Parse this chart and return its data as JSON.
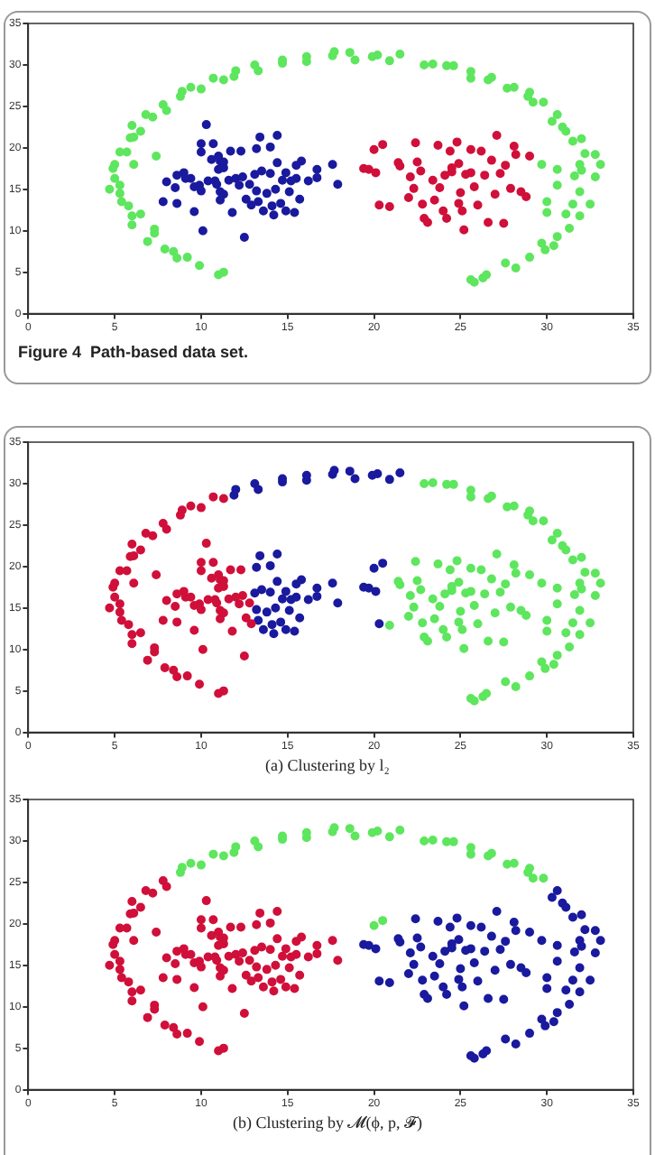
{
  "chart_data": [
    {
      "type": "scatter",
      "annotations": [
        "Figure 4  Path-based data set."
      ],
      "xlim": [
        0,
        35
      ],
      "ylim": [
        0,
        35
      ],
      "xticks": [
        0,
        5,
        10,
        15,
        20,
        25,
        30,
        35
      ],
      "yticks": [
        0,
        5,
        10,
        15,
        20,
        25,
        30,
        35
      ],
      "grid": false,
      "marker": "circle",
      "series": [
        {
          "color": "#5ee65e",
          "x": [
            11.3,
            11.0,
            9.9,
            9.2,
            8.6,
            8.4,
            7.9,
            7.3,
            7.3,
            6.9,
            6.5,
            6.0,
            6.0,
            5.8,
            5.4,
            5.3,
            4.7,
            5.3,
            5.0,
            4.9,
            5.0,
            5.3,
            5.7,
            6.1,
            7.4,
            5.9,
            6.1,
            6.0,
            6.5,
            6.8,
            7.2,
            7.8,
            8.0,
            8.8,
            8.9,
            9.4,
            10.0,
            10.7,
            11.3,
            11.9,
            12.0,
            13.1,
            13.3,
            14.7,
            14.7,
            16.1,
            16.1,
            17.6,
            17.7,
            18.6,
            18.9,
            19.9,
            20.2,
            20.9,
            21.5,
            22.9,
            23.4,
            24.2,
            24.6,
            25.6,
            25.6,
            26.8,
            26.6,
            27.7,
            28.1,
            29.0,
            28.9,
            29.2,
            29.8,
            30.3,
            30.6,
            30.9,
            31.1,
            31.5,
            32.0,
            32.2,
            32.8,
            31.9,
            33.1,
            32.0,
            32.8,
            31.6,
            31.9,
            32.5,
            31.5,
            31.1,
            31.3,
            31.9,
            30.6,
            30.4,
            29.9,
            29.7,
            29.0,
            28.2,
            27.6,
            26.5,
            26.3,
            25.8,
            25.6,
            30.0,
            30.0,
            29.7,
            30.6,
            30.6
          ],
          "values": [
            5.0,
            4.7,
            5.8,
            6.8,
            6.7,
            7.5,
            7.8,
            9.7,
            10.2,
            8.7,
            12,
            10.7,
            11.8,
            13,
            13.5,
            14.5,
            15,
            15.5,
            16.3,
            17.5,
            18,
            19.5,
            19.5,
            18,
            19,
            21.2,
            21.3,
            22.7,
            22,
            24,
            23.7,
            25.2,
            24.5,
            26.2,
            26.8,
            27.3,
            27.1,
            28.4,
            28.2,
            28.6,
            29.3,
            30,
            29.3,
            30.2,
            30.6,
            30.4,
            31,
            31.1,
            31.6,
            31.5,
            30.6,
            31,
            31.2,
            30.5,
            31.3,
            30,
            30.1,
            29.9,
            29.9,
            29.2,
            28.4,
            28.5,
            28.2,
            27.2,
            27.3,
            26.7,
            26.2,
            25.5,
            25.5,
            23.2,
            24,
            22.5,
            22,
            20.8,
            21.1,
            19.3,
            19.2,
            18,
            18,
            17.3,
            16.5,
            16.6,
            14.7,
            13.2,
            13.2,
            12,
            10.3,
            11.8,
            9.3,
            8.2,
            7.7,
            8.5,
            6.8,
            5.5,
            6.1,
            4.7,
            4.3,
            3.8,
            4.1,
            13.5,
            12.2,
            18,
            17.4,
            15.5
          ]
        },
        {
          "color": "#1a1a9e",
          "x": [
            8.0,
            7.8,
            8.5,
            8.6,
            8.6,
            9.0,
            9.1,
            9.4,
            9.6,
            9.6,
            9.9,
            10.0,
            10.0,
            10.0,
            10.1,
            10.3,
            10.4,
            10.6,
            10.7,
            10.8,
            10.9,
            11.0,
            11.0,
            11.1,
            11.1,
            11.1,
            11.3,
            11.3,
            11.3,
            11.6,
            11.7,
            11.8,
            12.0,
            12.2,
            12.3,
            12.4,
            12.5,
            12.6,
            12.8,
            12.9,
            13.1,
            13.2,
            13.2,
            13.3,
            13.4,
            13.5,
            13.6,
            13.8,
            14.0,
            14.0,
            14.1,
            14.2,
            14.3,
            14.4,
            14.4,
            14.6,
            14.7,
            14.9,
            14.9,
            15.1,
            15.2,
            15.4,
            15.5,
            15.5,
            15.7,
            15.8,
            16.2,
            16.7,
            16.7,
            17.6,
            17.9
          ],
          "values": [
            15.9,
            13.5,
            15.2,
            16.7,
            13.3,
            17,
            16.3,
            16.3,
            15.3,
            12.3,
            15.5,
            14.8,
            20.5,
            19.5,
            10,
            22.8,
            16,
            18.6,
            20.5,
            16,
            15.6,
            17.4,
            19.0,
            18.4,
            14.7,
            13.7,
            14.4,
            17.6,
            18.3,
            16.1,
            19.6,
            12.2,
            16.3,
            15.5,
            19.6,
            16.5,
            9.2,
            13.8,
            15.6,
            13.1,
            16.8,
            14.8,
            19.9,
            13.5,
            21.3,
            17.2,
            12.4,
            14.5,
            16.9,
            20.1,
            13.0,
            11.9,
            15.0,
            18.2,
            21.5,
            13.3,
            16.1,
            17.0,
            12.4,
            14.7,
            16.0,
            12.2,
            16.3,
            17.9,
            13.8,
            18.4,
            16.0,
            17.4,
            16.4,
            18.0,
            15.6
          ]
        },
        {
          "color": "#d0103a",
          "x": [
            19.4,
            19.7,
            20.1,
            20.3,
            20.0,
            20.5,
            20.9,
            21.4,
            21.5,
            22.0,
            22.1,
            22.3,
            22.4,
            22.5,
            22.7,
            22.8,
            22.9,
            23.1,
            23.4,
            23.5,
            23.7,
            23.8,
            24.0,
            24.1,
            24.2,
            24.4,
            24.5,
            24.5,
            24.8,
            24.9,
            24.9,
            25.0,
            25.1,
            25.2,
            25.3,
            25.6,
            25.6,
            25.8,
            26.0,
            26.2,
            26.4,
            26.6,
            26.8,
            27.0,
            27.1,
            27.3,
            27.5,
            27.6,
            27.9,
            28.1,
            28.2,
            28.5,
            28.8,
            29.0
          ],
          "values": [
            17.5,
            17.4,
            17.0,
            13.1,
            19.8,
            20.4,
            12.9,
            18.2,
            17.8,
            14,
            16.5,
            15.1,
            20.6,
            18.3,
            17.2,
            13.2,
            11.5,
            11.0,
            16.1,
            13.7,
            20.3,
            15.2,
            12.4,
            16.7,
            11.5,
            19.6,
            17.1,
            17.6,
            20.7,
            18.1,
            13.3,
            14.6,
            12.4,
            10.1,
            16.8,
            19.8,
            17.0,
            15.3,
            13.1,
            19.6,
            16.7,
            11.0,
            18.5,
            14.4,
            21.5,
            16.9,
            10.9,
            17.9,
            15.1,
            20.2,
            19.2,
            14.7,
            14.1,
            19.0
          ]
        }
      ]
    },
    {
      "type": "scatter",
      "annotations": [
        "(a) Clustering by l₂"
      ],
      "xlim": [
        0,
        35
      ],
      "ylim": [
        0,
        35
      ],
      "xticks": [
        0,
        5,
        10,
        15,
        20,
        25,
        30,
        35
      ],
      "yticks": [
        0,
        5,
        10,
        15,
        20,
        25,
        30,
        35
      ],
      "grid": false,
      "marker": "circle",
      "series": [
        {
          "color": "#d0103a",
          "x": [
            11.3,
            11.0,
            9.9,
            9.2,
            8.6,
            8.4,
            7.9,
            7.3,
            7.3,
            6.9,
            6.5,
            6.0,
            6.0,
            5.8,
            5.4,
            5.3,
            4.7,
            5.3,
            5.0,
            4.9,
            5.0,
            5.3,
            5.7,
            6.1,
            7.4,
            5.9,
            6.1,
            6.0,
            6.5,
            6.8,
            7.2,
            7.8,
            8.0,
            8.8,
            8.9,
            9.4,
            10.0,
            10.7,
            11.3,
            8.0,
            7.8,
            8.5,
            8.6,
            8.6,
            9.0,
            9.1,
            9.4,
            9.6,
            9.6,
            9.9,
            10.0,
            10.0,
            10.0,
            10.1,
            10.3,
            10.4,
            10.6,
            10.7,
            10.8,
            10.9,
            11.0,
            11.0,
            11.1,
            11.1,
            11.1,
            11.3,
            11.3,
            11.3,
            11.6,
            11.7,
            11.8,
            12.0,
            12.2,
            12.3,
            12.4,
            12.5,
            12.6,
            12.8,
            12.9
          ],
          "values": [
            5.0,
            4.7,
            5.8,
            6.8,
            6.7,
            7.5,
            7.8,
            9.7,
            10.2,
            8.7,
            12,
            10.7,
            11.8,
            13,
            13.5,
            14.5,
            15,
            15.5,
            16.3,
            17.5,
            18,
            19.5,
            19.5,
            18,
            19,
            21.2,
            21.3,
            22.7,
            22,
            24,
            23.7,
            25.2,
            24.5,
            26.2,
            26.8,
            27.3,
            27.1,
            28.4,
            28.2,
            15.9,
            13.5,
            15.2,
            16.7,
            13.3,
            17,
            16.3,
            16.3,
            15.3,
            12.3,
            15.5,
            14.8,
            20.5,
            19.5,
            10,
            22.8,
            16,
            18.6,
            20.5,
            16,
            15.6,
            17.4,
            19.0,
            18.4,
            14.7,
            13.7,
            14.4,
            17.6,
            18.3,
            16.1,
            19.6,
            12.2,
            16.3,
            15.5,
            19.6,
            16.5,
            9.2,
            13.8,
            15.6,
            13.1
          ]
        },
        {
          "color": "#1a1a9e",
          "x": [
            11.9,
            12.0,
            13.1,
            13.3,
            14.7,
            14.7,
            16.1,
            16.1,
            17.6,
            17.7,
            18.6,
            18.9,
            19.9,
            20.2,
            20.9,
            21.5,
            13.1,
            13.2,
            13.2,
            13.3,
            13.4,
            13.5,
            13.6,
            13.8,
            14.0,
            14.0,
            14.1,
            14.2,
            14.3,
            14.4,
            14.4,
            14.6,
            14.7,
            14.9,
            14.9,
            15.1,
            15.2,
            15.4,
            15.5,
            15.5,
            15.7,
            15.8,
            16.2,
            16.7,
            16.7,
            17.6,
            17.9,
            19.4,
            19.7,
            20.1,
            20.3,
            20.0,
            20.5
          ],
          "values": [
            28.6,
            29.3,
            30,
            29.3,
            30.2,
            30.6,
            30.4,
            31,
            31.1,
            31.6,
            31.5,
            30.6,
            31,
            31.2,
            30.5,
            31.3,
            16.8,
            14.8,
            19.9,
            13.5,
            21.3,
            17.2,
            12.4,
            14.5,
            16.9,
            20.1,
            13.0,
            11.9,
            15.0,
            18.2,
            21.5,
            13.3,
            16.1,
            17.0,
            12.4,
            14.7,
            16.0,
            12.2,
            16.3,
            17.9,
            13.8,
            18.4,
            16.0,
            17.4,
            16.4,
            18.0,
            15.6,
            17.5,
            17.4,
            17.0,
            13.1,
            19.8,
            20.4
          ]
        },
        {
          "color": "#5ee65e",
          "x": [
            22.9,
            23.4,
            24.2,
            24.6,
            25.6,
            25.6,
            26.8,
            26.6,
            27.7,
            28.1,
            29.0,
            28.9,
            29.2,
            29.8,
            30.3,
            30.6,
            30.9,
            31.1,
            31.5,
            32.0,
            32.2,
            32.8,
            31.9,
            33.1,
            32.0,
            32.8,
            31.6,
            31.9,
            32.5,
            31.5,
            31.1,
            31.3,
            31.9,
            30.6,
            30.4,
            29.9,
            29.7,
            29.0,
            28.2,
            27.6,
            26.5,
            26.3,
            25.8,
            25.6,
            30.0,
            30.0,
            29.7,
            30.6,
            30.6,
            20.9,
            21.4,
            21.5,
            22.0,
            22.1,
            22.3,
            22.4,
            22.5,
            22.7,
            22.8,
            22.9,
            23.1,
            23.4,
            23.5,
            23.7,
            23.8,
            24.0,
            24.1,
            24.2,
            24.4,
            24.5,
            24.5,
            24.8,
            24.9,
            24.9,
            25.0,
            25.1,
            25.2,
            25.3,
            25.6,
            25.6,
            25.8,
            26.0,
            26.2,
            26.4,
            26.6,
            26.8,
            27.0,
            27.1,
            27.3,
            27.5,
            27.6,
            27.9,
            28.1,
            28.2,
            28.5,
            28.8,
            29.0
          ],
          "values": [
            30,
            30.1,
            29.9,
            29.9,
            29.2,
            28.4,
            28.5,
            28.2,
            27.2,
            27.3,
            26.7,
            26.2,
            25.5,
            25.5,
            23.2,
            24,
            22.5,
            22,
            20.8,
            21.1,
            19.3,
            19.2,
            18,
            18,
            17.3,
            16.5,
            16.6,
            14.7,
            13.2,
            13.2,
            12,
            10.3,
            11.8,
            9.3,
            8.2,
            7.7,
            8.5,
            6.8,
            5.5,
            6.1,
            4.7,
            4.3,
            3.8,
            4.1,
            13.5,
            12.2,
            18,
            17.4,
            15.5,
            12.9,
            18.2,
            17.8,
            14,
            16.5,
            15.1,
            20.6,
            18.3,
            17.2,
            13.2,
            11.5,
            11.0,
            16.1,
            13.7,
            20.3,
            15.2,
            12.4,
            16.7,
            11.5,
            19.6,
            17.1,
            17.6,
            20.7,
            18.1,
            13.3,
            14.6,
            12.4,
            10.1,
            16.8,
            19.8,
            17.0,
            15.3,
            13.1,
            19.6,
            16.7,
            11.0,
            18.5,
            14.4,
            21.5,
            16.9,
            10.9,
            17.9,
            15.1,
            20.2,
            19.2,
            14.7,
            14.1,
            19.0
          ]
        }
      ]
    },
    {
      "type": "scatter",
      "annotations": [
        "(b) Clustering by 𝓜(ϕ, p, 𝓕)"
      ],
      "xlim": [
        0,
        35
      ],
      "ylim": [
        0,
        35
      ],
      "xticks": [
        0,
        5,
        10,
        15,
        20,
        25,
        30,
        35
      ],
      "yticks": [
        0,
        5,
        10,
        15,
        20,
        25,
        30,
        35
      ],
      "grid": false,
      "marker": "circle",
      "series": [
        {
          "color": "#d0103a",
          "x": [
            11.3,
            11.0,
            9.9,
            9.2,
            8.6,
            8.4,
            7.9,
            7.3,
            7.3,
            6.9,
            6.5,
            6.0,
            6.0,
            5.8,
            5.4,
            5.3,
            4.7,
            5.3,
            5.0,
            4.9,
            5.0,
            5.3,
            5.7,
            6.1,
            7.4,
            5.9,
            6.1,
            6.0,
            6.5,
            6.8,
            7.2,
            7.8,
            8.0,
            8.0,
            7.8,
            8.5,
            8.6,
            8.6,
            9.0,
            9.1,
            9.4,
            9.6,
            9.6,
            9.9,
            10.0,
            10.0,
            10.0,
            10.1,
            10.3,
            10.4,
            10.6,
            10.7,
            10.8,
            10.9,
            11.0,
            11.0,
            11.1,
            11.1,
            11.1,
            11.3,
            11.3,
            11.3,
            11.6,
            11.7,
            11.8,
            12.0,
            12.2,
            12.3,
            12.4,
            12.5,
            12.6,
            12.8,
            12.9,
            13.1,
            13.2,
            13.2,
            13.3,
            13.4,
            13.5,
            13.6,
            13.8,
            14.0,
            14.0,
            14.1,
            14.2,
            14.3,
            14.4,
            14.4,
            14.6,
            14.7,
            14.9,
            14.9,
            15.1,
            15.2,
            15.4,
            15.5,
            15.5,
            15.7,
            15.8,
            16.2,
            16.7,
            16.7,
            17.6,
            17.9
          ],
          "values": [
            5.0,
            4.7,
            5.8,
            6.8,
            6.7,
            7.5,
            7.8,
            9.7,
            10.2,
            8.7,
            12,
            10.7,
            11.8,
            13,
            13.5,
            14.5,
            15,
            15.5,
            16.3,
            17.5,
            18,
            19.5,
            19.5,
            18,
            19,
            21.2,
            21.3,
            22.7,
            22,
            24,
            23.7,
            25.2,
            24.5,
            15.9,
            13.5,
            15.2,
            16.7,
            13.3,
            17,
            16.3,
            16.3,
            15.3,
            12.3,
            15.5,
            14.8,
            20.5,
            19.5,
            10,
            22.8,
            16,
            18.6,
            20.5,
            16,
            15.6,
            17.4,
            19.0,
            18.4,
            14.7,
            13.7,
            14.4,
            17.6,
            18.3,
            16.1,
            19.6,
            12.2,
            16.3,
            15.5,
            19.6,
            16.5,
            9.2,
            13.8,
            15.6,
            13.1,
            16.8,
            14.8,
            19.9,
            13.5,
            21.3,
            17.2,
            12.4,
            14.5,
            16.9,
            20.1,
            13.0,
            11.9,
            15.0,
            18.2,
            21.5,
            13.3,
            16.1,
            17.0,
            12.4,
            14.7,
            16.0,
            12.2,
            16.3,
            17.9,
            13.8,
            18.4,
            16.0,
            17.4,
            16.4,
            18.0,
            15.6
          ]
        },
        {
          "color": "#5ee65e",
          "x": [
            8.8,
            8.9,
            9.4,
            10.0,
            10.7,
            11.3,
            11.9,
            12.0,
            13.1,
            13.3,
            14.7,
            14.7,
            16.1,
            16.1,
            17.6,
            17.7,
            18.6,
            18.9,
            19.9,
            20.2,
            20.9,
            21.5,
            22.9,
            23.4,
            24.2,
            24.6,
            25.6,
            25.6,
            26.8,
            26.6,
            27.7,
            28.1,
            29.0,
            28.9,
            29.2,
            29.8,
            20.0,
            20.5
          ],
          "values": [
            26.2,
            26.8,
            27.3,
            27.1,
            28.4,
            28.2,
            28.6,
            29.3,
            30,
            29.3,
            30.2,
            30.6,
            30.4,
            31,
            31.1,
            31.6,
            31.5,
            30.6,
            31,
            31.2,
            30.5,
            31.3,
            30,
            30.1,
            29.9,
            29.9,
            29.2,
            28.4,
            28.5,
            28.2,
            27.2,
            27.3,
            26.7,
            26.2,
            25.5,
            25.5,
            19.8,
            20.4
          ]
        },
        {
          "color": "#1a1a9e",
          "x": [
            30.3,
            30.6,
            30.9,
            31.1,
            31.5,
            32.0,
            32.2,
            32.8,
            31.9,
            33.1,
            32.0,
            32.8,
            31.6,
            31.9,
            32.5,
            31.5,
            31.1,
            31.3,
            31.9,
            30.6,
            30.4,
            29.9,
            29.7,
            29.0,
            28.2,
            27.6,
            26.5,
            26.3,
            25.8,
            25.6,
            30.0,
            30.0,
            29.7,
            30.6,
            30.6,
            19.4,
            19.7,
            20.1,
            20.3,
            20.9,
            21.4,
            21.5,
            22.0,
            22.1,
            22.3,
            22.4,
            22.5,
            22.7,
            22.8,
            22.9,
            23.1,
            23.4,
            23.5,
            23.7,
            23.8,
            24.0,
            24.1,
            24.2,
            24.4,
            24.5,
            24.5,
            24.8,
            24.9,
            24.9,
            25.0,
            25.1,
            25.2,
            25.3,
            25.6,
            25.6,
            25.8,
            26.0,
            26.2,
            26.4,
            26.6,
            26.8,
            27.0,
            27.1,
            27.3,
            27.5,
            27.6,
            27.9,
            28.1,
            28.2,
            28.5,
            28.8,
            29.0
          ],
          "values": [
            23.2,
            24,
            22.5,
            22,
            20.8,
            21.1,
            19.3,
            19.2,
            18,
            18,
            17.3,
            16.5,
            16.6,
            14.7,
            13.2,
            13.2,
            12,
            10.3,
            11.8,
            9.3,
            8.2,
            7.7,
            8.5,
            6.8,
            5.5,
            6.1,
            4.7,
            4.3,
            3.8,
            4.1,
            13.5,
            12.2,
            18,
            17.4,
            15.5,
            17.5,
            17.4,
            17.0,
            13.1,
            12.9,
            18.2,
            17.8,
            14,
            16.5,
            15.1,
            20.6,
            18.3,
            17.2,
            13.2,
            11.5,
            11.0,
            16.1,
            13.7,
            20.3,
            15.2,
            12.4,
            16.7,
            11.5,
            19.6,
            17.1,
            17.6,
            20.7,
            18.1,
            13.3,
            14.6,
            12.4,
            10.1,
            16.8,
            19.8,
            17.0,
            15.3,
            13.1,
            19.6,
            16.7,
            11.0,
            18.5,
            14.4,
            21.5,
            16.9,
            10.9,
            17.9,
            15.1,
            20.2,
            19.2,
            14.7,
            14.1,
            19.0
          ]
        }
      ]
    }
  ]
}
